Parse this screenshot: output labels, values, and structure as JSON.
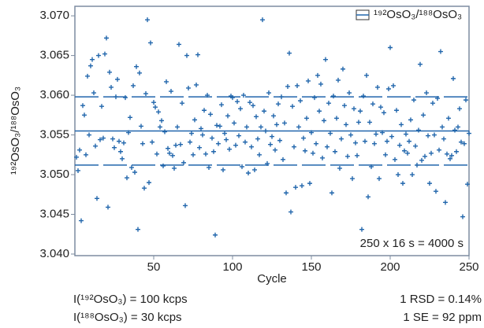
{
  "chart_data": {
    "type": "scatter",
    "y_label": "¹⁹²OsO₃/¹⁸⁸OsO₃",
    "x_label": "Cycle",
    "annotations": [
      "250 x 16 s = 4000 s",
      "I(¹⁹²OsO₃) = 100 kcps",
      "I(¹⁸⁸OsO₃) = 30 kcps",
      "1 RSD = 0.14%",
      "1 SE = 92 ppm"
    ],
    "legend": "upper right",
    "xlim": [
      0,
      250
    ],
    "ylim": [
      3.0398,
      3.0712
    ],
    "xticks": [
      50,
      100,
      150,
      200,
      250
    ],
    "yticks": [
      {
        "value": 3.04,
        "label": "3.040"
      },
      {
        "value": 3.045,
        "label": "3.045"
      },
      {
        "value": 3.05,
        "label": "3.050"
      },
      {
        "value": 3.055,
        "label": "3.055"
      },
      {
        "value": 3.06,
        "label": "3.060"
      },
      {
        "value": 3.065,
        "label": "3.065"
      },
      {
        "value": 3.07,
        "label": "3.070"
      }
    ],
    "reference_lines": [
      {
        "value": 3.0555,
        "style": "solid"
      },
      {
        "value": 3.0598,
        "style": "dashed"
      },
      {
        "value": 3.0512,
        "style": "dashed"
      }
    ],
    "x": [
      1,
      2,
      3,
      4,
      5,
      6,
      7,
      8,
      9,
      10,
      11,
      12,
      13,
      14,
      15,
      16,
      17,
      18,
      19,
      20,
      21,
      22,
      23,
      24,
      25,
      26,
      27,
      28,
      29,
      30,
      31,
      32,
      33,
      34,
      35,
      36,
      37,
      38,
      39,
      40,
      41,
      42,
      43,
      44,
      45,
      46,
      47,
      48,
      49,
      50,
      51,
      52,
      53,
      54,
      55,
      56,
      57,
      58,
      59,
      60,
      61,
      62,
      63,
      64,
      65,
      66,
      67,
      68,
      69,
      70,
      71,
      72,
      73,
      74,
      75,
      76,
      77,
      78,
      79,
      80,
      81,
      82,
      83,
      84,
      85,
      86,
      87,
      88,
      89,
      90,
      91,
      92,
      93,
      94,
      95,
      96,
      97,
      98,
      99,
      100,
      101,
      102,
      103,
      104,
      105,
      106,
      107,
      108,
      109,
      110,
      111,
      112,
      113,
      114,
      115,
      116,
      117,
      118,
      119,
      120,
      121,
      122,
      123,
      124,
      125,
      126,
      127,
      128,
      129,
      130,
      131,
      132,
      133,
      134,
      135,
      136,
      137,
      138,
      139,
      140,
      141,
      142,
      143,
      144,
      145,
      146,
      147,
      148,
      149,
      150,
      151,
      152,
      153,
      154,
      155,
      156,
      157,
      158,
      159,
      160,
      161,
      162,
      163,
      164,
      165,
      166,
      167,
      168,
      169,
      170,
      171,
      172,
      173,
      174,
      175,
      176,
      177,
      178,
      179,
      180,
      181,
      182,
      183,
      184,
      185,
      186,
      187,
      188,
      189,
      190,
      191,
      192,
      193,
      194,
      195,
      196,
      197,
      198,
      199,
      200,
      201,
      202,
      203,
      204,
      205,
      206,
      207,
      208,
      209,
      210,
      211,
      212,
      213,
      214,
      215,
      216,
      217,
      218,
      219,
      220,
      221,
      222,
      223,
      224,
      225,
      226,
      227,
      228,
      229,
      230,
      231,
      232,
      233,
      234,
      235,
      236,
      237,
      238,
      239,
      240,
      241,
      242,
      243,
      244,
      245,
      246,
      247,
      248,
      249,
      250
    ],
    "series": [
      {
        "name": "¹⁹²OsO₃/¹⁸⁸OsO₃",
        "color": "#2166ac",
        "values": [
          3.0522,
          3.0505,
          3.0531,
          3.0442,
          3.0587,
          3.0575,
          3.0525,
          3.0624,
          3.055,
          3.0637,
          3.0645,
          3.0603,
          3.0536,
          3.047,
          3.065,
          3.0544,
          3.0586,
          3.0546,
          3.0652,
          3.0672,
          3.0459,
          3.0629,
          3.061,
          3.0545,
          3.0534,
          3.0598,
          3.062,
          3.0542,
          3.0529,
          3.052,
          3.054,
          3.0597,
          3.0496,
          3.0553,
          3.0572,
          3.0509,
          3.0612,
          3.0503,
          3.0636,
          3.0431,
          3.0628,
          3.0561,
          3.0539,
          3.0483,
          3.0602,
          3.0695,
          3.049,
          3.0666,
          3.0541,
          3.0591,
          3.0585,
          3.0526,
          3.0579,
          3.056,
          3.0568,
          3.0511,
          3.0554,
          3.0617,
          3.0533,
          3.0527,
          3.0605,
          3.0524,
          3.0508,
          3.0537,
          3.056,
          3.0664,
          3.0538,
          3.059,
          3.0515,
          3.0461,
          3.065,
          3.0609,
          3.0541,
          3.0552,
          3.0525,
          3.0569,
          3.0613,
          3.0651,
          3.0534,
          3.0558,
          3.055,
          3.0581,
          3.0526,
          3.06,
          3.0509,
          3.0576,
          3.0546,
          3.0529,
          3.0424,
          3.0562,
          3.0539,
          3.0561,
          3.0588,
          3.0506,
          3.0552,
          3.0544,
          3.0574,
          3.0532,
          3.0599,
          3.0597,
          3.0565,
          3.0537,
          3.0592,
          3.0549,
          3.0583,
          3.051,
          3.06,
          3.0541,
          3.056,
          3.0502,
          3.0591,
          3.0535,
          3.0587,
          3.0506,
          3.0573,
          3.0545,
          3.0525,
          3.056,
          3.0695,
          3.058,
          3.0555,
          3.0514,
          3.0603,
          3.0538,
          3.0548,
          3.0574,
          3.0531,
          3.0563,
          3.0589,
          3.0543,
          3.0598,
          3.0519,
          3.0565,
          3.0477,
          3.0611,
          3.0653,
          3.0453,
          3.0586,
          3.0535,
          3.0484,
          3.0612,
          3.056,
          3.0593,
          3.0486,
          3.0546,
          3.053,
          3.0571,
          3.0618,
          3.0489,
          3.0553,
          3.0527,
          3.0597,
          3.0539,
          3.0625,
          3.058,
          3.0614,
          3.0521,
          3.0568,
          3.0645,
          3.0535,
          3.059,
          3.0552,
          3.0477,
          3.0599,
          3.0529,
          3.0571,
          3.0619,
          3.0508,
          3.0545,
          3.0633,
          3.0587,
          3.0563,
          3.0523,
          3.0603,
          3.055,
          3.0495,
          3.0583,
          3.054,
          3.0524,
          3.0566,
          3.058,
          3.0431,
          3.0599,
          3.0542,
          3.0625,
          3.0472,
          3.0566,
          3.051,
          3.0589,
          3.0539,
          3.0551,
          3.061,
          3.0495,
          3.0585,
          3.0553,
          3.0578,
          3.0525,
          3.0542,
          3.0608,
          3.066,
          3.0548,
          3.0612,
          3.0519,
          3.0581,
          3.05,
          3.0537,
          3.0563,
          3.0489,
          3.053,
          3.0551,
          3.0527,
          3.0542,
          3.0569,
          3.05,
          3.0594,
          3.0536,
          3.0512,
          3.0556,
          3.0639,
          3.0518,
          3.0575,
          3.0523,
          3.0603,
          3.0549,
          3.0489,
          3.0527,
          3.059,
          3.055,
          3.0479,
          3.0596,
          3.0531,
          3.0655,
          3.056,
          3.0545,
          3.0465,
          3.0526,
          3.0571,
          3.052,
          3.0524,
          3.0621,
          3.0556,
          3.0529,
          3.056,
          3.0583,
          3.0541,
          3.0447,
          3.0539,
          3.0594,
          3.0488,
          3.0552
        ]
      }
    ]
  }
}
